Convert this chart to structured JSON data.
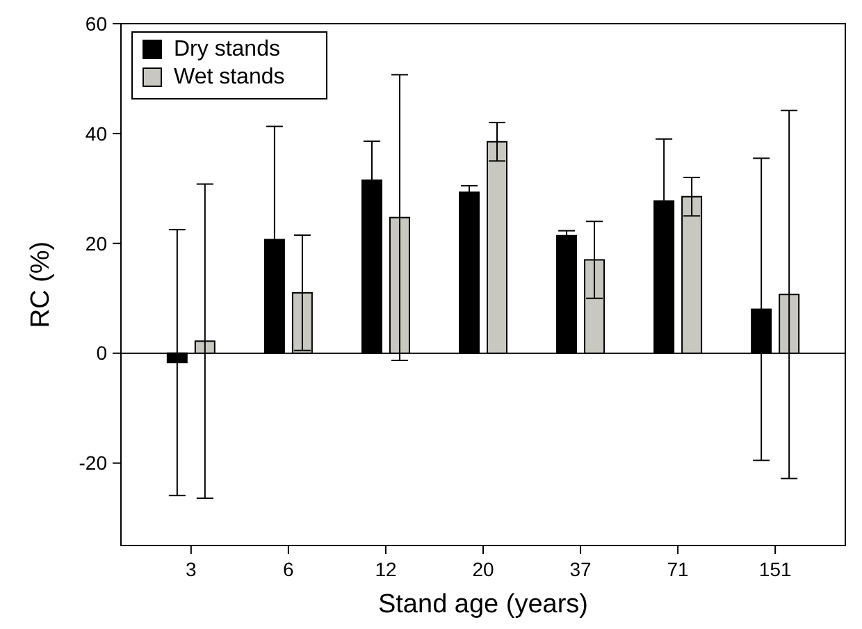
{
  "chart_data": {
    "type": "bar",
    "xlabel": "Stand age (years)",
    "ylabel": "RC (%)",
    "categories": [
      "3",
      "6",
      "12",
      "20",
      "37",
      "71",
      "151"
    ],
    "series": [
      {
        "name": "Dry stands",
        "color": "#000000",
        "values": [
          -1.7,
          20.7,
          31.5,
          29.3,
          21.4,
          27.7,
          8
        ],
        "errors": [
          24.2,
          20.6,
          7.1,
          1.2,
          0.9,
          11.3,
          27.5
        ]
      },
      {
        "name": "Wet stands",
        "color": "#c8c8c0",
        "values": [
          2.2,
          11,
          24.7,
          38.5,
          17,
          28.5,
          10.7
        ],
        "errors": [
          28.6,
          10.5,
          26,
          3.5,
          7,
          3.5,
          33.5
        ]
      }
    ],
    "ylim": [
      -35,
      60
    ],
    "yticks": [
      -20,
      0,
      20,
      40,
      60
    ],
    "ref_lines": [
      {
        "axis": "y",
        "value": 0
      }
    ],
    "legend": "top left",
    "grid": false
  }
}
